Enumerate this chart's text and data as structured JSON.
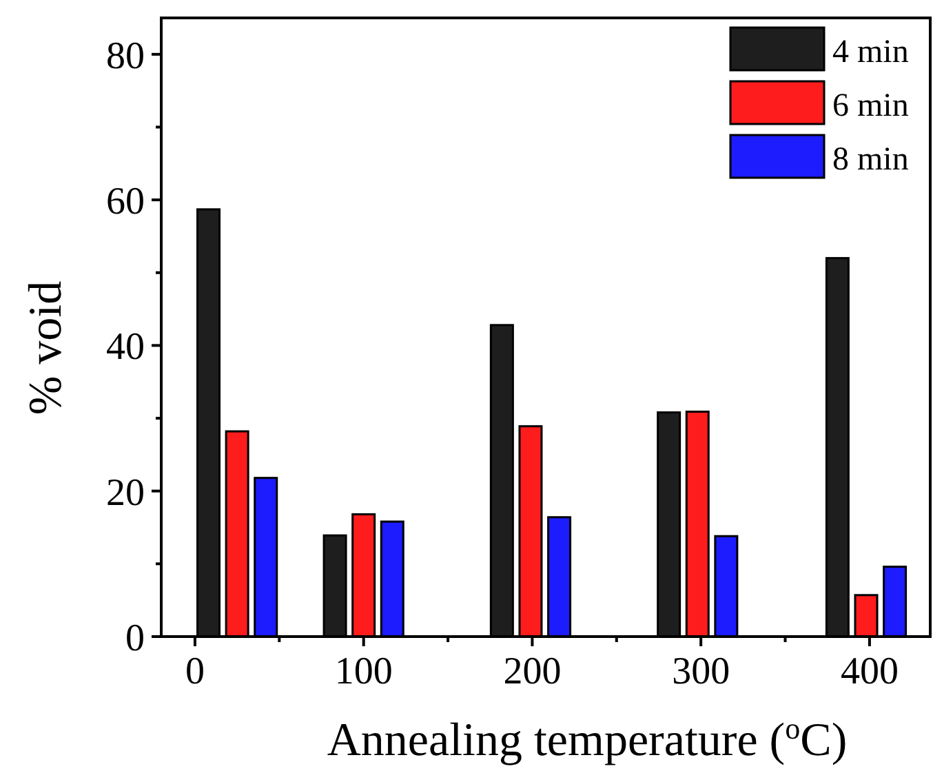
{
  "chart_data": {
    "type": "bar",
    "xlabel": "Annealing temperature ($^{o}$C)",
    "ylabel": "% void",
    "xlim": [
      -20,
      436
    ],
    "xticks": [
      0,
      {
        "value": 50,
        "label": null
      },
      100,
      {
        "value": 150,
        "label": null
      },
      200,
      {
        "value": 250,
        "label": null
      },
      300,
      {
        "value": 350,
        "label": null
      },
      400
    ],
    "ylim": [
      0,
      85
    ],
    "yticks": [
      0,
      {
        "value": 10,
        "label": null
      },
      20,
      {
        "value": 30,
        "label": null
      },
      40,
      {
        "value": 50,
        "label": null
      },
      60,
      {
        "value": 70,
        "label": null
      },
      80
    ],
    "legend": "top right",
    "grid": false,
    "series": [
      {
        "name": "4 min",
        "color": "#1e1e1e",
        "x": [
          8,
          83,
          182,
          281,
          381
        ],
        "values": [
          58.7,
          13.9,
          42.8,
          30.8,
          52.0
        ]
      },
      {
        "name": "6 min",
        "color": "#fe1c1c",
        "x": [
          25,
          100,
          199,
          298,
          398
        ],
        "values": [
          28.2,
          16.8,
          28.9,
          30.9,
          5.7
        ]
      },
      {
        "name": "8 min",
        "color": "#1c1cfe",
        "x": [
          42,
          117,
          216,
          315,
          415
        ],
        "values": [
          21.8,
          15.8,
          16.4,
          13.8,
          9.6
        ]
      }
    ]
  }
}
